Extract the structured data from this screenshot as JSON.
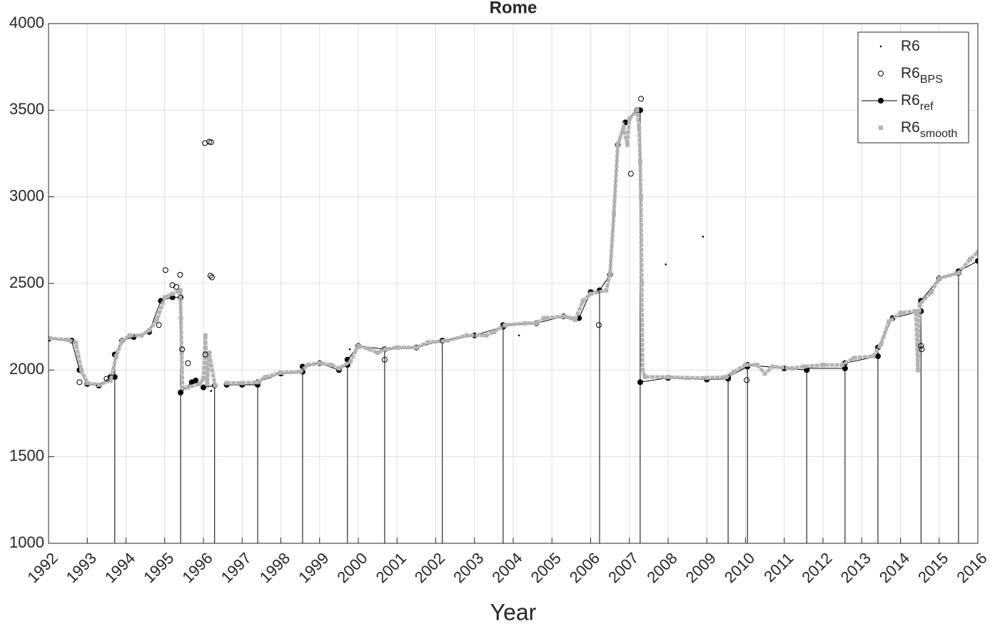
{
  "chart_data": {
    "type": "scatter",
    "title": "Rome",
    "x_label": "Year",
    "xlim": [
      1992,
      2016
    ],
    "ylim": [
      1000,
      4000
    ],
    "xticks": [
      1992,
      1993,
      1994,
      1995,
      1996,
      1997,
      1998,
      1999,
      2000,
      2001,
      2002,
      2003,
      2004,
      2005,
      2006,
      2007,
      2008,
      2009,
      2010,
      2011,
      2012,
      2013,
      2014,
      2015,
      2016
    ],
    "yticks": [
      1000,
      1500,
      2000,
      2500,
      3000,
      3500,
      4000
    ],
    "grid": true,
    "legend": "northeast",
    "series": [
      {
        "name": "R6",
        "color": "#000000",
        "marker": "point",
        "line": false,
        "x": [
          1999.78,
          2004.15,
          2007.94,
          2008.9,
          1996.0,
          1996.2
        ],
        "values": [
          2120,
          2200,
          2610,
          2770,
          1890,
          1880
        ]
      },
      {
        "name": "R6",
        "subscript": "BPS",
        "color": "#000000",
        "marker": "open-circle",
        "line": false,
        "x": [
          1992.8,
          1993.5,
          1994.85,
          1995.02,
          1995.2,
          1995.3,
          1995.4,
          1995.45,
          1995.6,
          1996.05,
          1996.04,
          1996.15,
          1996.2,
          1996.18,
          1996.22,
          2000.68,
          2006.21,
          2007.04,
          2007.3,
          2010.03,
          2014.53,
          2014.55
        ],
        "values": [
          1930,
          1950,
          2260,
          2577,
          2490,
          2480,
          2550,
          2120,
          2040,
          2090,
          3310,
          3318,
          3315,
          2545,
          2535,
          2060,
          2260,
          3133,
          3566,
          1942,
          2140,
          2120
        ]
      },
      {
        "name": "R6",
        "subscript": "ref",
        "color": "#000000",
        "marker": "filled-circle",
        "line": true,
        "x": [
          1992.0,
          1992.6,
          1992.8,
          1993.0,
          1993.3,
          1993.6,
          1993.71,
          1993.71,
          1993.71,
          1993.9,
          1994.2,
          1994.6,
          1994.9,
          1995.2,
          1995.41,
          1995.41,
          1995.41,
          1995.7,
          1995.8,
          1996.0,
          1996.29,
          1996.29,
          1996.45,
          1996.6,
          1997.0,
          1997.4,
          1997.4,
          1997.4,
          1998.0,
          1998.56,
          1998.56,
          1998.56,
          1999.0,
          1999.5,
          1999.72,
          1999.72,
          1999.72,
          2000.0,
          2000.68,
          2000.68,
          2000.68,
          2001.5,
          2002.17,
          2002.17,
          2002.17,
          2003.0,
          2003.74,
          2003.74,
          2003.74,
          2004.6,
          2005.3,
          2005.7,
          2006.0,
          2006.23,
          2006.23,
          2006.23,
          2006.5,
          2006.7,
          2006.9,
          2007.2,
          2007.28,
          2007.28,
          2007.28,
          2008.0,
          2009.0,
          2009.55,
          2009.55,
          2009.55,
          2010.05,
          2010.05,
          2010.05,
          2011.0,
          2011.58,
          2011.58,
          2011.58,
          2012.57,
          2012.57,
          2012.57,
          2013.42,
          2013.42,
          2013.42,
          2013.8,
          2014.53,
          2014.53,
          2014.53,
          2015.0,
          2015.5,
          2015.5,
          2015.5,
          2016.0
        ],
        "values": [
          2180,
          2170,
          2000,
          1920,
          1910,
          1960,
          1960,
          1000,
          2090,
          2170,
          2190,
          2220,
          2400,
          2420,
          2420,
          1000,
          1870,
          1930,
          1940,
          1900,
          1910,
          1000,
          null,
          1915,
          1915,
          1915,
          1000,
          1930,
          1980,
          1990,
          1000,
          2020,
          2040,
          2000,
          2030,
          1000,
          2060,
          2140,
          2120,
          1000,
          2120,
          2130,
          2170,
          1000,
          2170,
          2200,
          2250,
          1000,
          2260,
          2270,
          2310,
          2300,
          2450,
          2460,
          1000,
          2460,
          2550,
          3300,
          3430,
          3500,
          3500,
          1000,
          1930,
          1955,
          1945,
          1950,
          1000,
          1960,
          2020,
          1000,
          2030,
          2010,
          2000,
          1000,
          2010,
          2010,
          1000,
          2040,
          2080,
          1000,
          2130,
          2300,
          2340,
          1000,
          2400,
          2530,
          2560,
          1000,
          2570,
          2630
        ]
      },
      {
        "name": "R6",
        "subscript": "smooth",
        "color": "#b3b3b3",
        "marker": "square",
        "line": true,
        "x": [
          1992.0,
          1992.5,
          1992.7,
          1992.85,
          1993.0,
          1993.3,
          1993.6,
          1993.75,
          1993.9,
          1994.1,
          1994.4,
          1994.6,
          1994.8,
          1995.0,
          1995.2,
          1995.4,
          1995.42,
          1995.44,
          1995.46,
          1995.6,
          1995.9,
          1996.0,
          1996.05,
          1996.1,
          1996.15,
          1996.3,
          1996.45,
          1996.6,
          1997.0,
          1997.4,
          1997.6,
          1998.0,
          1998.5,
          1998.7,
          1999.0,
          1999.3,
          1999.5,
          1999.8,
          2000.0,
          2000.3,
          2000.5,
          2000.7,
          2001.0,
          2001.5,
          2001.8,
          2002.3,
          2002.8,
          2003.3,
          2003.5,
          2003.8,
          2004.3,
          2004.6,
          2004.8,
          2005.3,
          2005.5,
          2005.6,
          2005.8,
          2006.0,
          2006.4,
          2006.5,
          2006.6,
          2006.7,
          2006.85,
          2006.95,
          2007.0,
          2007.2,
          2007.25,
          2007.28,
          2007.3,
          2007.32,
          2007.34,
          2007.4,
          2008.0,
          2008.5,
          2009.0,
          2009.5,
          2009.7,
          2010.0,
          2010.3,
          2010.5,
          2010.7,
          2011.2,
          2011.5,
          2012.0,
          2012.5,
          2012.8,
          2013.3,
          2013.5,
          2013.7,
          2014.0,
          2014.4,
          2014.45,
          2014.5,
          2014.8,
          2015.0,
          2015.5,
          2015.8,
          2016.0
        ],
        "values": [
          2185,
          2175,
          2160,
          2000,
          1925,
          1915,
          1940,
          2080,
          2170,
          2200,
          2200,
          2230,
          2290,
          2420,
          2440,
          2460,
          2300,
          2100,
          1900,
          1900,
          1920,
          1950,
          2200,
          1920,
          2100,
          1910,
          null,
          1925,
          1925,
          1930,
          1960,
          1985,
          1990,
          2030,
          2040,
          2030,
          2010,
          2050,
          2140,
          2120,
          2100,
          2120,
          2130,
          2130,
          2160,
          2170,
          2200,
          2200,
          2220,
          2260,
          2270,
          2270,
          2300,
          2310,
          2300,
          2290,
          2400,
          2440,
          2460,
          2550,
          2900,
          3300,
          3400,
          3300,
          3450,
          3500,
          3400,
          3200,
          3000,
          2500,
          2000,
          1960,
          1960,
          1955,
          1955,
          1960,
          1990,
          2030,
          2030,
          1980,
          2020,
          2010,
          2020,
          2030,
          2030,
          2070,
          2080,
          2150,
          2280,
          2330,
          2340,
          2000,
          2380,
          2450,
          2530,
          2560,
          2640,
          2680
        ]
      }
    ]
  }
}
